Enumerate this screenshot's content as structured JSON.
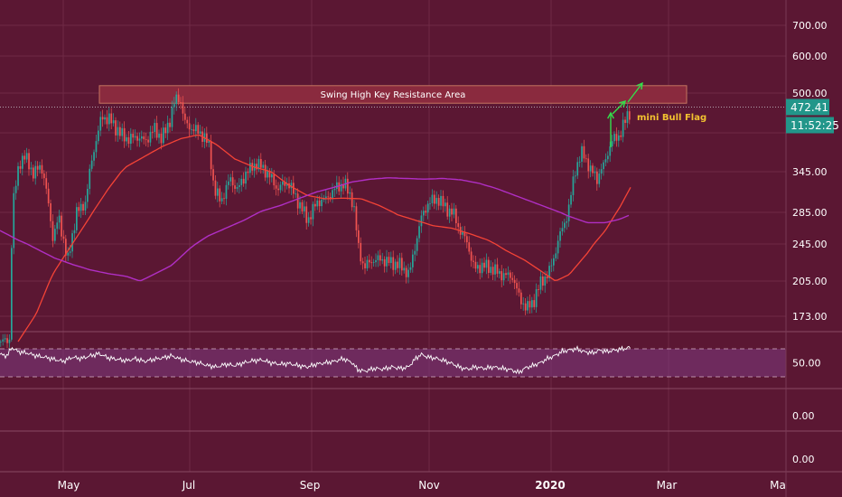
{
  "chart_data": {
    "type": "candlestick",
    "annotations": {
      "resistance_label": "Swing High Key Resistance Area",
      "pattern_label": "mini Bull Flag"
    },
    "price_axis": {
      "ticks": [
        "700.00",
        "600.00",
        "500.00",
        "345.00",
        "285.00",
        "245.00",
        "205.00",
        "173.00"
      ],
      "last_price": "472.41",
      "countdown": "11:52:25"
    },
    "rsi_axis": {
      "ticks": [
        "50.00"
      ]
    },
    "extra_axis": {
      "ticks": [
        "0.00",
        "0.00"
      ]
    },
    "time_axis": {
      "ticks": [
        "May",
        "Jul",
        "Sep",
        "Nov",
        "2020",
        "Mar",
        "Ma"
      ]
    },
    "resistance_zone": {
      "low": 480,
      "high": 520
    },
    "price_anchors": [
      [
        0,
        150
      ],
      [
        10,
        152
      ],
      [
        13,
        290
      ],
      [
        20,
        360
      ],
      [
        28,
        375
      ],
      [
        36,
        340
      ],
      [
        44,
        360
      ],
      [
        52,
        305
      ],
      [
        58,
        250
      ],
      [
        64,
        280
      ],
      [
        74,
        225
      ],
      [
        84,
        285
      ],
      [
        94,
        300
      ],
      [
        102,
        380
      ],
      [
        112,
        455
      ],
      [
        122,
        445
      ],
      [
        132,
        420
      ],
      [
        142,
        408
      ],
      [
        150,
        415
      ],
      [
        160,
        405
      ],
      [
        170,
        430
      ],
      [
        178,
        410
      ],
      [
        186,
        440
      ],
      [
        192,
        480
      ],
      [
        198,
        495
      ],
      [
        204,
        440
      ],
      [
        212,
        430
      ],
      [
        222,
        420
      ],
      [
        230,
        400
      ],
      [
        236,
        318
      ],
      [
        244,
        302
      ],
      [
        254,
        335
      ],
      [
        262,
        318
      ],
      [
        272,
        345
      ],
      [
        284,
        362
      ],
      [
        296,
        342
      ],
      [
        306,
        320
      ],
      [
        318,
        330
      ],
      [
        330,
        298
      ],
      [
        340,
        275
      ],
      [
        350,
        300
      ],
      [
        360,
        305
      ],
      [
        370,
        320
      ],
      [
        380,
        328
      ],
      [
        390,
        300
      ],
      [
        396,
        240
      ],
      [
        402,
        220
      ],
      [
        412,
        228
      ],
      [
        422,
        228
      ],
      [
        432,
        225
      ],
      [
        442,
        222
      ],
      [
        452,
        212
      ],
      [
        458,
        240
      ],
      [
        466,
        280
      ],
      [
        474,
        300
      ],
      [
        484,
        305
      ],
      [
        494,
        290
      ],
      [
        502,
        282
      ],
      [
        508,
        262
      ],
      [
        516,
        248
      ],
      [
        524,
        218
      ],
      [
        534,
        222
      ],
      [
        544,
        218
      ],
      [
        554,
        212
      ],
      [
        566,
        210
      ],
      [
        574,
        190
      ],
      [
        582,
        180
      ],
      [
        590,
        187
      ],
      [
        598,
        205
      ],
      [
        606,
        212
      ],
      [
        612,
        230
      ],
      [
        620,
        260
      ],
      [
        628,
        285
      ],
      [
        636,
        350
      ],
      [
        644,
        385
      ],
      [
        652,
        350
      ],
      [
        660,
        335
      ],
      [
        668,
        360
      ],
      [
        676,
        405
      ],
      [
        684,
        415
      ],
      [
        690,
        440
      ],
      [
        698,
        472
      ]
    ],
    "ma_short_anchors": [
      [
        20,
        150
      ],
      [
        40,
        175
      ],
      [
        60,
        215
      ],
      [
        80,
        245
      ],
      [
        100,
        280
      ],
      [
        120,
        320
      ],
      [
        140,
        355
      ],
      [
        160,
        375
      ],
      [
        180,
        395
      ],
      [
        200,
        410
      ],
      [
        220,
        418
      ],
      [
        240,
        398
      ],
      [
        260,
        370
      ],
      [
        280,
        355
      ],
      [
        300,
        345
      ],
      [
        320,
        325
      ],
      [
        340,
        310
      ],
      [
        360,
        305
      ],
      [
        380,
        306
      ],
      [
        400,
        305
      ],
      [
        420,
        295
      ],
      [
        440,
        282
      ],
      [
        460,
        275
      ],
      [
        480,
        268
      ],
      [
        500,
        265
      ],
      [
        520,
        258
      ],
      [
        540,
        250
      ],
      [
        560,
        238
      ],
      [
        580,
        228
      ],
      [
        600,
        215
      ],
      [
        615,
        205
      ],
      [
        630,
        212
      ],
      [
        650,
        235
      ],
      [
        670,
        262
      ],
      [
        685,
        290
      ],
      [
        698,
        322
      ]
    ],
    "ma_long_anchors": [
      [
        0,
        262
      ],
      [
        20,
        250
      ],
      [
        40,
        240
      ],
      [
        60,
        230
      ],
      [
        80,
        223
      ],
      [
        100,
        217
      ],
      [
        120,
        213
      ],
      [
        140,
        210
      ],
      [
        155,
        205
      ],
      [
        170,
        212
      ],
      [
        190,
        222
      ],
      [
        210,
        240
      ],
      [
        230,
        255
      ],
      [
        250,
        265
      ],
      [
        270,
        275
      ],
      [
        290,
        287
      ],
      [
        310,
        295
      ],
      [
        330,
        305
      ],
      [
        350,
        315
      ],
      [
        370,
        322
      ],
      [
        390,
        330
      ],
      [
        410,
        334
      ],
      [
        430,
        336
      ],
      [
        450,
        335
      ],
      [
        470,
        334
      ],
      [
        490,
        335
      ],
      [
        510,
        333
      ],
      [
        530,
        328
      ],
      [
        550,
        320
      ],
      [
        570,
        310
      ],
      [
        590,
        300
      ],
      [
        610,
        290
      ],
      [
        630,
        280
      ],
      [
        650,
        272
      ],
      [
        670,
        272
      ],
      [
        685,
        276
      ],
      [
        698,
        282
      ]
    ],
    "rsi_anchors": [
      [
        0,
        62
      ],
      [
        8,
        60
      ],
      [
        13,
        72
      ],
      [
        20,
        66
      ],
      [
        30,
        64
      ],
      [
        40,
        60
      ],
      [
        50,
        58
      ],
      [
        60,
        55
      ],
      [
        70,
        52
      ],
      [
        80,
        58
      ],
      [
        90,
        56
      ],
      [
        100,
        60
      ],
      [
        110,
        63
      ],
      [
        120,
        57
      ],
      [
        130,
        55
      ],
      [
        140,
        53
      ],
      [
        150,
        56
      ],
      [
        160,
        52
      ],
      [
        170,
        55
      ],
      [
        180,
        57
      ],
      [
        190,
        60
      ],
      [
        200,
        55
      ],
      [
        210,
        52
      ],
      [
        220,
        50
      ],
      [
        230,
        46
      ],
      [
        240,
        44
      ],
      [
        250,
        48
      ],
      [
        260,
        46
      ],
      [
        270,
        50
      ],
      [
        280,
        53
      ],
      [
        290,
        54
      ],
      [
        300,
        50
      ],
      [
        310,
        48
      ],
      [
        320,
        49
      ],
      [
        330,
        46
      ],
      [
        340,
        44
      ],
      [
        350,
        48
      ],
      [
        360,
        50
      ],
      [
        370,
        52
      ],
      [
        380,
        56
      ],
      [
        390,
        50
      ],
      [
        396,
        40
      ],
      [
        404,
        38
      ],
      [
        414,
        42
      ],
      [
        424,
        41
      ],
      [
        434,
        44
      ],
      [
        444,
        42
      ],
      [
        452,
        44
      ],
      [
        460,
        56
      ],
      [
        466,
        62
      ],
      [
        474,
        58
      ],
      [
        484,
        56
      ],
      [
        494,
        52
      ],
      [
        502,
        48
      ],
      [
        510,
        43
      ],
      [
        518,
        41
      ],
      [
        526,
        44
      ],
      [
        536,
        42
      ],
      [
        546,
        44
      ],
      [
        556,
        42
      ],
      [
        566,
        40
      ],
      [
        574,
        36
      ],
      [
        582,
        43
      ],
      [
        590,
        46
      ],
      [
        598,
        50
      ],
      [
        606,
        56
      ],
      [
        614,
        60
      ],
      [
        622,
        66
      ],
      [
        630,
        68
      ],
      [
        638,
        70
      ],
      [
        646,
        66
      ],
      [
        656,
        64
      ],
      [
        664,
        68
      ],
      [
        672,
        66
      ],
      [
        680,
        68
      ],
      [
        690,
        70
      ],
      [
        698,
        72
      ]
    ],
    "rsi_levels": {
      "upper": 70,
      "lower": 30,
      "min": 0,
      "max": 100
    },
    "colors": {
      "background": "#5b1733",
      "up": "#26a69a",
      "down": "#ef5350",
      "ma_short": "#f44336",
      "ma_long": "#b02fc4",
      "rsi": "#ffffff",
      "rsi_band": "#7e3a7f",
      "axis_text": "#ffffff",
      "annotation_text": "#f2c230",
      "arrow": "#33e04b",
      "resistance_fill": "#8a2a3e",
      "resistance_border": "#c4745f",
      "price_label_bg": "#22968a",
      "grid": "#6f2a46"
    }
  }
}
